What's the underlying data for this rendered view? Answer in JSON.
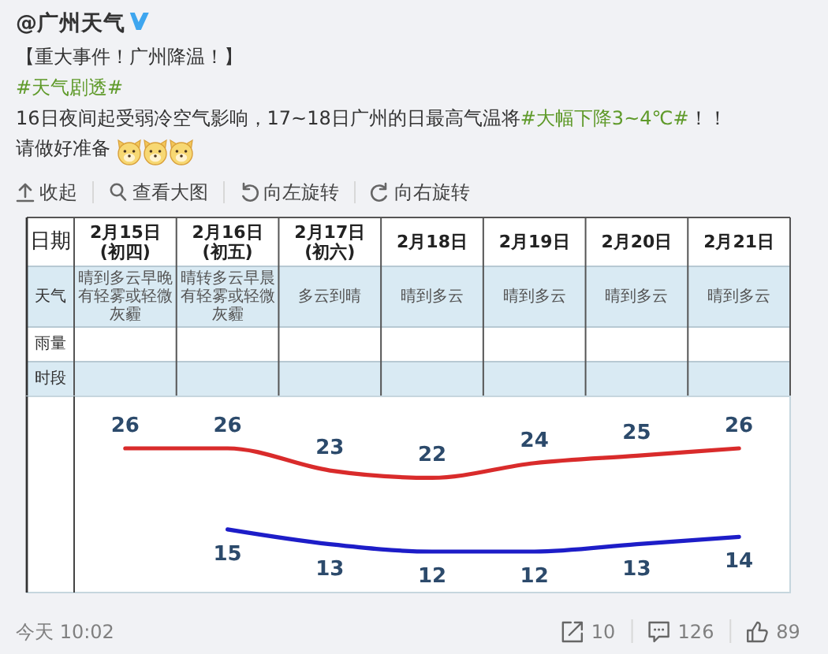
{
  "chart_data": [
    {
      "type": "other",
      "title": "@广州天气",
      "annotations": [
        "【重大事件！广州降温！】",
        "#天气剧透#",
        "16日夜间起受弱冷空气影响，17~18日广州的日最高气温将#大幅下降3~4℃#！！",
        "请做好准备",
        "收起",
        "查看大图",
        "向左旋转",
        "向右旋转",
        "今天 10:02",
        "10",
        "126",
        "89"
      ]
    },
    {
      "type": "line",
      "xlabel": "日期",
      "categories": [
        "2月15日\n(初四)",
        "2月16日\n(初五)",
        "2月17日\n(初六)",
        "2月18日",
        "2月19日",
        "2月20日",
        "2月21日"
      ],
      "series": [
        {
          "color": "#d92b2b",
          "values": [
            26,
            26,
            23,
            22,
            24,
            25,
            26
          ]
        },
        {
          "color": "#1d1dc8",
          "values": [
            null,
            15,
            13,
            12,
            12,
            13,
            14
          ]
        }
      ],
      "data_labels": true,
      "tick_labels": "x",
      "annotations": [
        "天气",
        "雨量",
        "时段",
        "晴到多云早晚有轻雾或轻微灰霾",
        "晴转多云早晨有轻雾或轻微灰霾",
        "多云到晴",
        "晴到多云",
        "晴到多云",
        "晴到多云",
        "晴到多云"
      ]
    }
  ]
}
